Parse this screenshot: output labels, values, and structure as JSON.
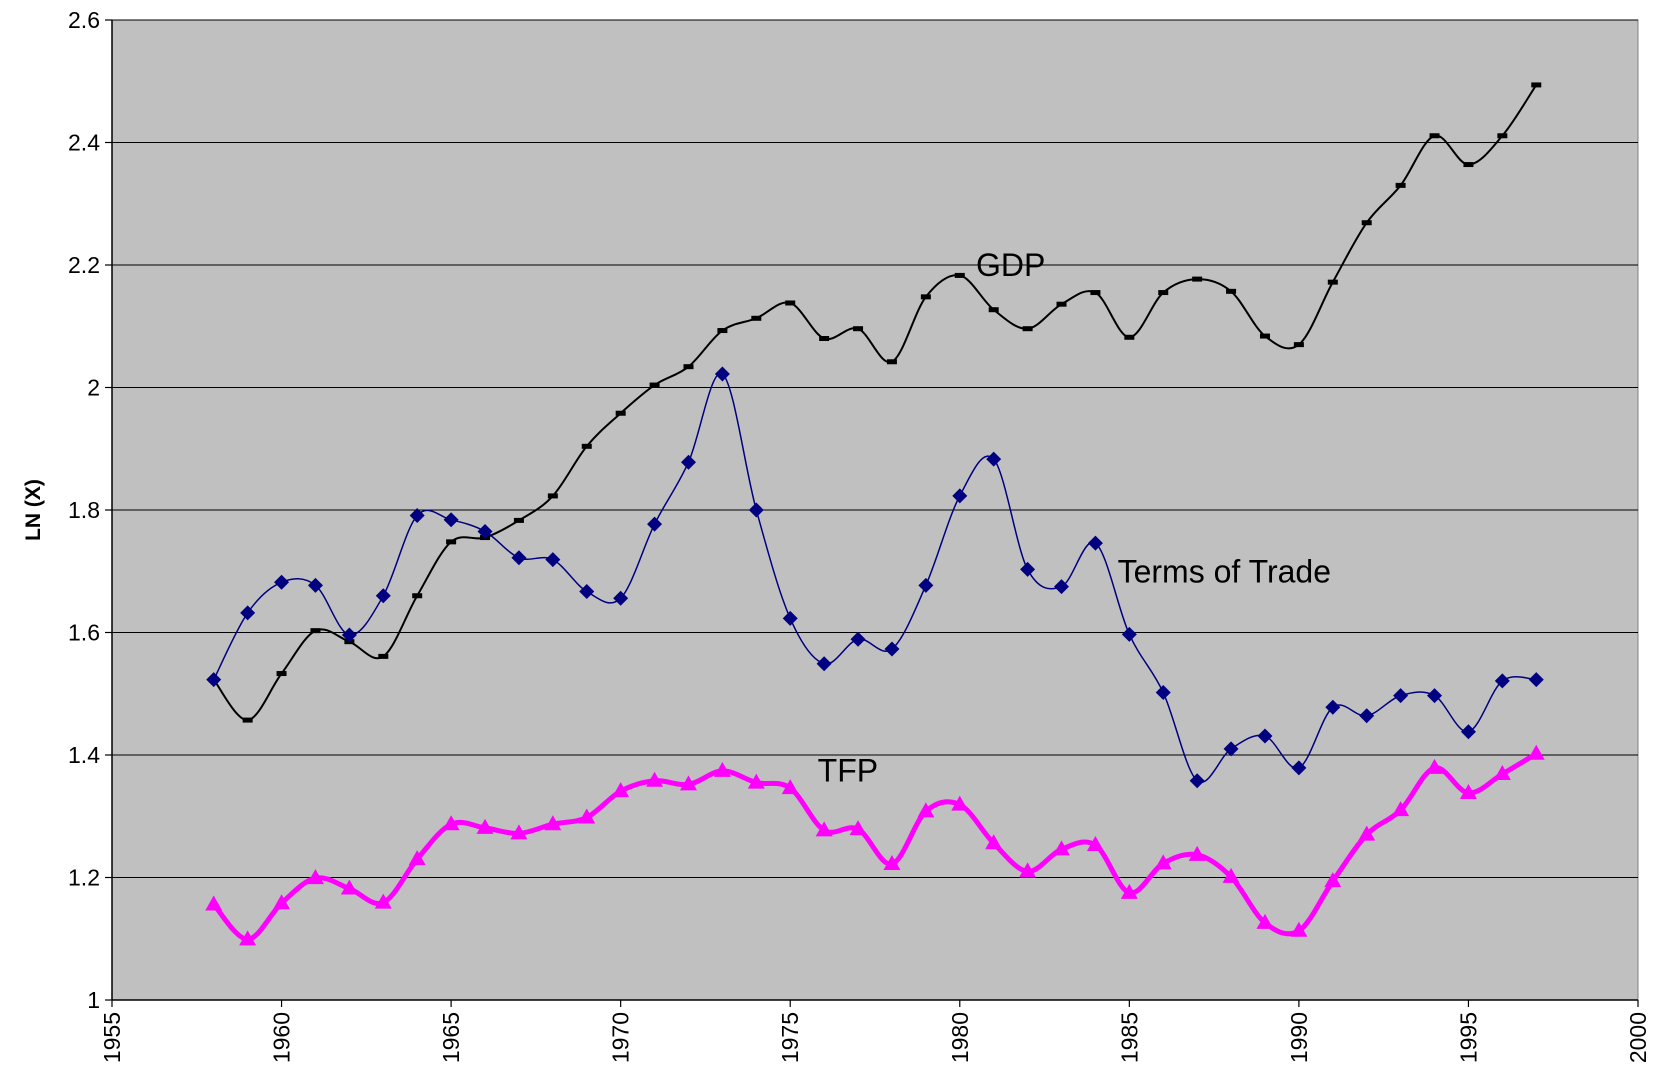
{
  "chart_data": {
    "type": "line",
    "y_label": "LN (X)",
    "x": [
      1958,
      1959,
      1960,
      1961,
      1962,
      1963,
      1964,
      1965,
      1966,
      1967,
      1968,
      1969,
      1970,
      1971,
      1972,
      1973,
      1974,
      1975,
      1976,
      1977,
      1978,
      1979,
      1980,
      1981,
      1982,
      1983,
      1984,
      1985,
      1986,
      1987,
      1988,
      1989,
      1990,
      1991,
      1992,
      1993,
      1994,
      1995,
      1996,
      1997
    ],
    "series": [
      {
        "name": "GDP",
        "color": "#000000",
        "marker": "dash",
        "values": [
          1.523,
          1.457,
          1.533,
          1.603,
          1.585,
          1.561,
          1.66,
          1.748,
          1.755,
          1.783,
          1.823,
          1.904,
          1.958,
          2.004,
          2.034,
          2.093,
          2.113,
          2.138,
          2.08,
          2.096,
          2.042,
          2.148,
          2.183,
          2.127,
          2.096,
          2.136,
          2.155,
          2.082,
          2.155,
          2.177,
          2.157,
          2.084,
          2.07,
          2.172,
          2.269,
          2.33,
          2.411,
          2.364,
          2.411,
          2.494
        ]
      },
      {
        "name": "Terms of Trade",
        "color": "#000080",
        "marker": "diamond",
        "values": [
          1.523,
          1.632,
          1.682,
          1.677,
          1.596,
          1.66,
          1.791,
          1.784,
          1.765,
          1.722,
          1.719,
          1.667,
          1.656,
          1.777,
          1.878,
          2.022,
          1.8,
          1.623,
          1.549,
          1.589,
          1.573,
          1.677,
          1.823,
          1.883,
          1.703,
          1.675,
          1.746,
          1.597,
          1.502,
          1.358,
          1.41,
          1.431,
          1.379,
          1.478,
          1.464,
          1.497,
          1.497,
          1.438,
          1.521,
          1.523
        ]
      },
      {
        "name": "TFP",
        "color": "#ff00ff",
        "marker": "triangle",
        "values": [
          1.156,
          1.099,
          1.158,
          1.199,
          1.182,
          1.159,
          1.23,
          1.287,
          1.281,
          1.272,
          1.287,
          1.298,
          1.341,
          1.358,
          1.352,
          1.374,
          1.355,
          1.346,
          1.277,
          1.279,
          1.222,
          1.308,
          1.319,
          1.256,
          1.21,
          1.246,
          1.253,
          1.175,
          1.223,
          1.237,
          1.201,
          1.126,
          1.113,
          1.194,
          1.27,
          1.31,
          1.379,
          1.338,
          1.369,
          1.402
        ]
      }
    ],
    "xlim": [
      1955,
      2000
    ],
    "xticks": [
      1955,
      1960,
      1965,
      1970,
      1975,
      1980,
      1985,
      1990,
      1995,
      2000
    ],
    "ylim": [
      1,
      2.6
    ],
    "yticks": [
      1,
      1.2,
      1.4,
      1.6,
      1.8,
      2,
      2.2,
      2.4,
      2.6
    ],
    "grid": true,
    "background": "#c0c0c0"
  }
}
